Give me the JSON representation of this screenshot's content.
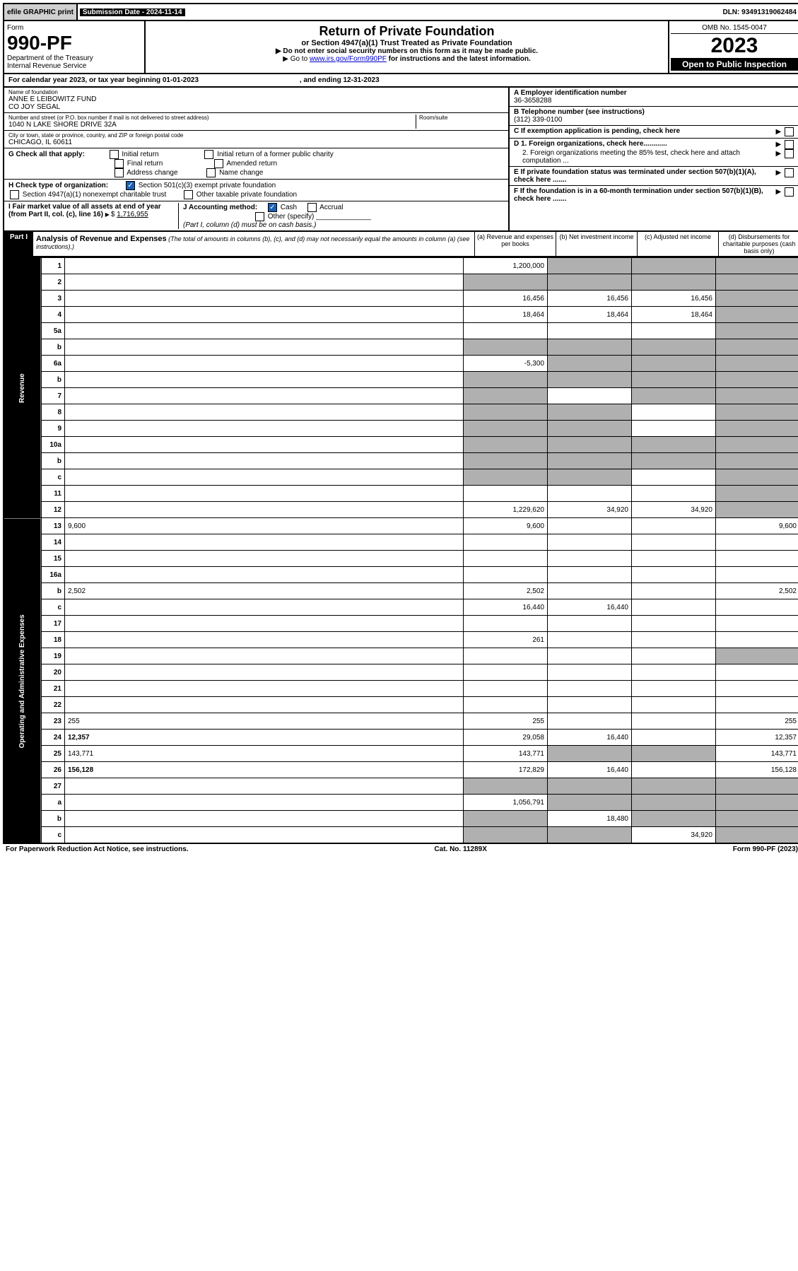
{
  "top": {
    "efile": "efile GRAPHIC print",
    "sub_label": "Submission Date - 2024-11-14",
    "dln": "DLN: 93491319062484"
  },
  "header": {
    "form_word": "Form",
    "form_num": "990-PF",
    "dept": "Department of the Treasury",
    "irs": "Internal Revenue Service",
    "title": "Return of Private Foundation",
    "subtitle": "or Section 4947(a)(1) Trust Treated as Private Foundation",
    "instr1": "▶ Do not enter social security numbers on this form as it may be made public.",
    "instr2_pre": "▶ Go to ",
    "instr2_link": "www.irs.gov/Form990PF",
    "instr2_post": " for instructions and the latest information.",
    "omb": "OMB No. 1545-0047",
    "year": "2023",
    "open": "Open to Public Inspection"
  },
  "cal": {
    "text_pre": "For calendar year 2023, or tax year beginning ",
    "begin": "01-01-2023",
    "mid": ", and ending ",
    "end": "12-31-2023"
  },
  "info": {
    "name_label": "Name of foundation",
    "name1": "ANNE E LEIBOWITZ FUND",
    "name2": "CO JOY SEGAL",
    "addr_label": "Number and street (or P.O. box number if mail is not delivered to street address)",
    "addr": "1040 N LAKE SHORE DRIVE 32A",
    "room_label": "Room/suite",
    "city_label": "City or town, state or province, country, and ZIP or foreign postal code",
    "city": "CHICAGO, IL  60611",
    "a_label": "A Employer identification number",
    "a_val": "36-3658288",
    "b_label": "B Telephone number (see instructions)",
    "b_val": "(312) 339-0100",
    "c_label": "C If exemption application is pending, check here",
    "d1": "D 1. Foreign organizations, check here............",
    "d2": "2. Foreign organizations meeting the 85% test, check here and attach computation ...",
    "e": "E  If private foundation status was terminated under section 507(b)(1)(A), check here .......",
    "f": "F  If the foundation is in a 60-month termination under section 507(b)(1)(B), check here .......",
    "g_label": "G Check all that apply:",
    "g_opts": [
      "Initial return",
      "Final return",
      "Address change",
      "Initial return of a former public charity",
      "Amended return",
      "Name change"
    ],
    "h_label": "H Check type of organization:",
    "h1": "Section 501(c)(3) exempt private foundation",
    "h2": "Section 4947(a)(1) nonexempt charitable trust",
    "h3": "Other taxable private foundation",
    "i_label": "I Fair market value of all assets at end of year (from Part II, col. (c), line 16)",
    "i_val": "1,716,955",
    "j_label": "J Accounting method:",
    "j_cash": "Cash",
    "j_accrual": "Accrual",
    "j_other": "Other (specify)",
    "j_note": "(Part I, column (d) must be on cash basis.)"
  },
  "part1": {
    "label": "Part I",
    "title": "Analysis of Revenue and Expenses",
    "subtitle": "(The total of amounts in columns (b), (c), and (d) may not necessarily equal the amounts in column (a) (see instructions).)",
    "col_a": "(a)   Revenue and expenses per books",
    "col_b": "(b)   Net investment income",
    "col_c": "(c)   Adjusted net income",
    "col_d": "(d)   Disbursements for charitable purposes (cash basis only)"
  },
  "sides": {
    "revenue": "Revenue",
    "expenses": "Operating and Administrative Expenses"
  },
  "rows": [
    {
      "n": "1",
      "d": "",
      "a": "1,200,000",
      "b": "",
      "c": "",
      "bs": true,
      "cs": true,
      "ds": true
    },
    {
      "n": "2",
      "d": "",
      "a": "",
      "b": "",
      "c": "",
      "as": true,
      "bs": true,
      "cs": true,
      "ds": true
    },
    {
      "n": "3",
      "d": "",
      "a": "16,456",
      "b": "16,456",
      "c": "16,456",
      "ds": true
    },
    {
      "n": "4",
      "d": "",
      "a": "18,464",
      "b": "18,464",
      "c": "18,464",
      "ds": true
    },
    {
      "n": "5a",
      "d": "",
      "a": "",
      "b": "",
      "c": "",
      "ds": true
    },
    {
      "n": "b",
      "d": "",
      "a": "",
      "b": "",
      "c": "",
      "as": true,
      "bs": true,
      "cs": true,
      "ds": true
    },
    {
      "n": "6a",
      "d": "",
      "a": "-5,300",
      "b": "",
      "c": "",
      "bs": true,
      "cs": true,
      "ds": true
    },
    {
      "n": "b",
      "d": "",
      "a": "",
      "b": "",
      "c": "",
      "as": true,
      "bs": true,
      "cs": true,
      "ds": true
    },
    {
      "n": "7",
      "d": "",
      "a": "",
      "b": "",
      "c": "",
      "as": true,
      "cs": true,
      "ds": true
    },
    {
      "n": "8",
      "d": "",
      "a": "",
      "b": "",
      "c": "",
      "as": true,
      "bs": true,
      "ds": true
    },
    {
      "n": "9",
      "d": "",
      "a": "",
      "b": "",
      "c": "",
      "as": true,
      "bs": true,
      "ds": true
    },
    {
      "n": "10a",
      "d": "",
      "a": "",
      "b": "",
      "c": "",
      "as": true,
      "bs": true,
      "cs": true,
      "ds": true
    },
    {
      "n": "b",
      "d": "",
      "a": "",
      "b": "",
      "c": "",
      "as": true,
      "bs": true,
      "cs": true,
      "ds": true
    },
    {
      "n": "c",
      "d": "",
      "a": "",
      "b": "",
      "c": "",
      "as": true,
      "bs": true,
      "ds": true
    },
    {
      "n": "11",
      "d": "",
      "a": "",
      "b": "",
      "c": "",
      "ds": true
    },
    {
      "n": "12",
      "d": "",
      "a": "1,229,620",
      "b": "34,920",
      "c": "34,920",
      "ds": true,
      "bold": true
    },
    {
      "n": "13",
      "d": "9,600",
      "a": "9,600",
      "b": "",
      "c": ""
    },
    {
      "n": "14",
      "d": "",
      "a": "",
      "b": "",
      "c": ""
    },
    {
      "n": "15",
      "d": "",
      "a": "",
      "b": "",
      "c": ""
    },
    {
      "n": "16a",
      "d": "",
      "a": "",
      "b": "",
      "c": ""
    },
    {
      "n": "b",
      "d": "2,502",
      "a": "2,502",
      "b": "",
      "c": ""
    },
    {
      "n": "c",
      "d": "",
      "a": "16,440",
      "b": "16,440",
      "c": ""
    },
    {
      "n": "17",
      "d": "",
      "a": "",
      "b": "",
      "c": ""
    },
    {
      "n": "18",
      "d": "",
      "a": "261",
      "b": "",
      "c": ""
    },
    {
      "n": "19",
      "d": "",
      "a": "",
      "b": "",
      "c": "",
      "ds": true
    },
    {
      "n": "20",
      "d": "",
      "a": "",
      "b": "",
      "c": ""
    },
    {
      "n": "21",
      "d": "",
      "a": "",
      "b": "",
      "c": ""
    },
    {
      "n": "22",
      "d": "",
      "a": "",
      "b": "",
      "c": ""
    },
    {
      "n": "23",
      "d": "255",
      "a": "255",
      "b": "",
      "c": ""
    },
    {
      "n": "24",
      "d": "12,357",
      "a": "29,058",
      "b": "16,440",
      "c": "",
      "bold": true
    },
    {
      "n": "25",
      "d": "143,771",
      "a": "143,771",
      "b": "",
      "c": "",
      "bs": true,
      "cs": true
    },
    {
      "n": "26",
      "d": "156,128",
      "a": "172,829",
      "b": "16,440",
      "c": "",
      "bold": true
    },
    {
      "n": "27",
      "d": "",
      "a": "",
      "b": "",
      "c": "",
      "as": true,
      "bs": true,
      "cs": true,
      "ds": true
    },
    {
      "n": "a",
      "d": "",
      "a": "1,056,791",
      "b": "",
      "c": "",
      "bs": true,
      "cs": true,
      "ds": true,
      "bold": true
    },
    {
      "n": "b",
      "d": "",
      "a": "",
      "b": "18,480",
      "c": "",
      "as": true,
      "cs": true,
      "ds": true,
      "bold": true
    },
    {
      "n": "c",
      "d": "",
      "a": "",
      "b": "",
      "c": "34,920",
      "as": true,
      "bs": true,
      "ds": true,
      "bold": true
    }
  ],
  "footer": {
    "left": "For Paperwork Reduction Act Notice, see instructions.",
    "mid": "Cat. No. 11289X",
    "right": "Form 990-PF (2023)"
  }
}
